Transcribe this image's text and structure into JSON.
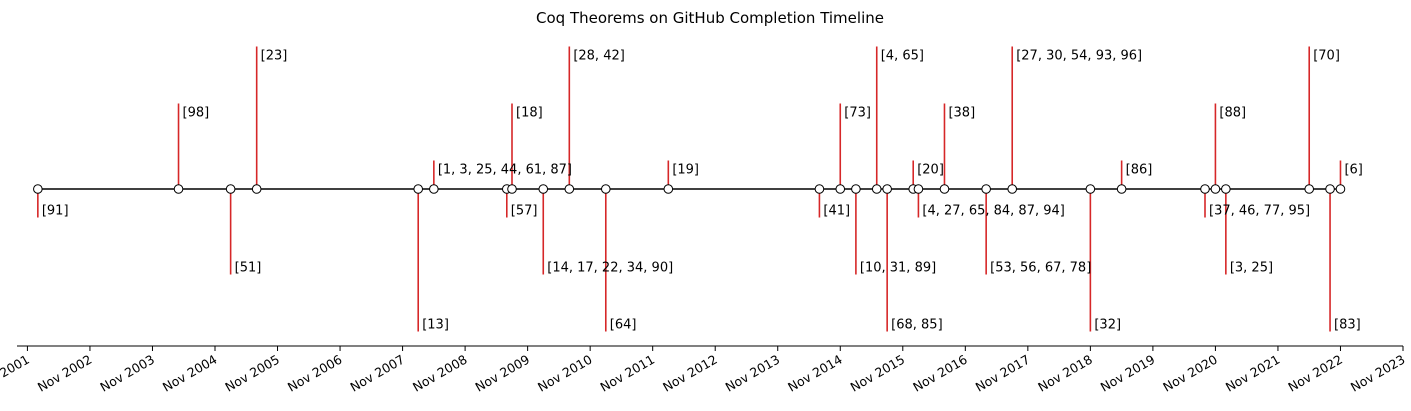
{
  "chart_data": {
    "type": "timeline",
    "title": "Coq Theorems on GitHub Completion Timeline",
    "x_axis": {
      "ticks": [
        "Nov 2001",
        "Nov 2002",
        "Nov 2003",
        "Nov 2004",
        "Nov 2005",
        "Nov 2006",
        "Nov 2007",
        "Nov 2008",
        "Nov 2009",
        "Nov 2010",
        "Nov 2011",
        "Nov 2012",
        "Nov 2013",
        "Nov 2014",
        "Nov 2015",
        "Nov 2016",
        "Nov 2017",
        "Nov 2018",
        "Nov 2019",
        "Nov 2020",
        "Nov 2021",
        "Nov 2022",
        "Nov 2023"
      ],
      "range": [
        "2001-09",
        "2023-11"
      ]
    },
    "colors": {
      "stem": "#d62728",
      "timeline": "#000000",
      "marker_fill": "#ffffff"
    },
    "events": [
      {
        "date": "2002-01",
        "label": "[91]",
        "level": -0.5
      },
      {
        "date": "2004-04",
        "label": "[98]",
        "level": 1.5
      },
      {
        "date": "2005-02",
        "label": "[51]",
        "level": -1.5
      },
      {
        "date": "2005-07",
        "label": "[23]",
        "level": 2.5
      },
      {
        "date": "2008-02",
        "label": "[13]",
        "level": -2.5
      },
      {
        "date": "2008-05",
        "label": "[1, 3, 25, 44, 61, 87]",
        "level": 0.5
      },
      {
        "date": "2009-07",
        "label": "[57]",
        "level": -0.5
      },
      {
        "date": "2009-08",
        "label": "[18]",
        "level": 1.5
      },
      {
        "date": "2010-02",
        "label": "[14, 17, 22, 34, 90]",
        "level": -1.5
      },
      {
        "date": "2010-07",
        "label": "[28, 42]",
        "level": 2.5
      },
      {
        "date": "2011-02",
        "label": "[64]",
        "level": -2.5
      },
      {
        "date": "2012-02",
        "label": "[19]",
        "level": 0.5
      },
      {
        "date": "2014-07",
        "label": "[41]",
        "level": -0.5
      },
      {
        "date": "2014-11",
        "label": "[73]",
        "level": 1.5
      },
      {
        "date": "2015-02",
        "label": "[10, 31, 89]",
        "level": -1.5
      },
      {
        "date": "2015-06",
        "label": "[4, 65]",
        "level": 2.5
      },
      {
        "date": "2015-08",
        "label": "[68, 85]",
        "level": -2.5
      },
      {
        "date": "2016-01",
        "label": "[20]",
        "level": 0.5
      },
      {
        "date": "2016-02",
        "label": "[4, 27, 65, 84, 87, 94]",
        "level": -0.5
      },
      {
        "date": "2016-07",
        "label": "[38]",
        "level": 1.5
      },
      {
        "date": "2017-03",
        "label": "[53, 56, 67, 78]",
        "level": -1.5
      },
      {
        "date": "2017-08",
        "label": "[27, 30, 54, 93, 96]",
        "level": 2.5
      },
      {
        "date": "2018-11",
        "label": "[32]",
        "level": -2.5
      },
      {
        "date": "2019-05",
        "label": "[86]",
        "level": 0.5
      },
      {
        "date": "2020-09",
        "label": "[37, 46, 77, 95]",
        "level": -0.5
      },
      {
        "date": "2020-11",
        "label": "[88]",
        "level": 1.5
      },
      {
        "date": "2021-01",
        "label": "[3, 25]",
        "level": -1.5
      },
      {
        "date": "2022-05",
        "label": "[70]",
        "level": 2.5
      },
      {
        "date": "2022-09",
        "label": "[83]",
        "level": -2.5
      },
      {
        "date": "2022-11",
        "label": "[6]",
        "level": 0.5
      }
    ]
  }
}
